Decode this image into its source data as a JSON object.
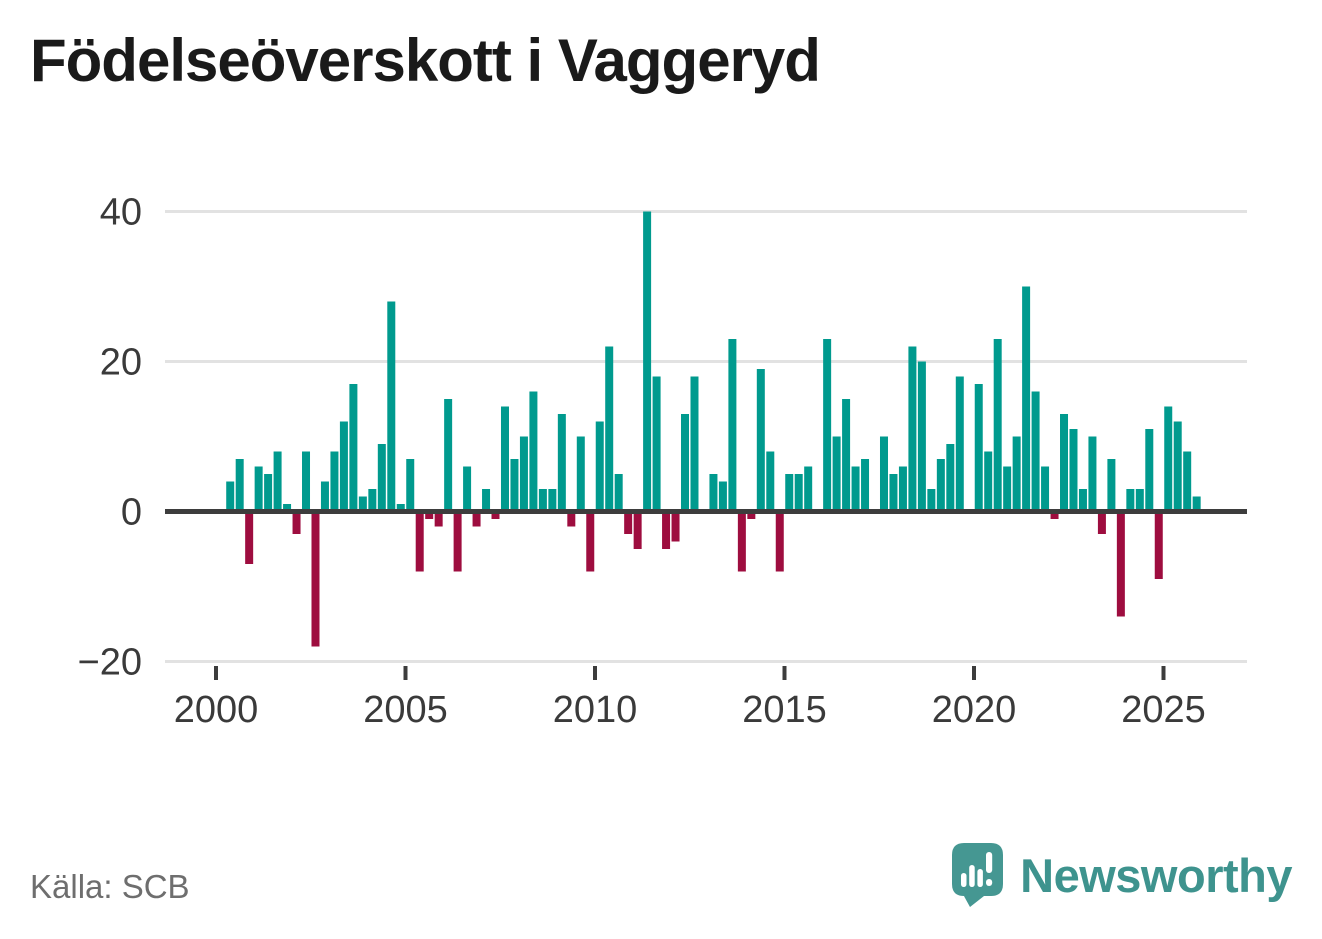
{
  "header": {
    "title": "Födelseöverskott i Vaggeryd"
  },
  "source": {
    "label": "Källa: SCB"
  },
  "logo": {
    "brand": "Newsworthy",
    "color": "#3e938e",
    "icon": "newsworthy-speech-bubble-barchart-icon"
  },
  "chart_data": {
    "type": "bar",
    "title": "Födelseöverskott i Vaggeryd",
    "xlabel": "",
    "ylabel": "",
    "frequency": "quarterly",
    "start": "2000Q2",
    "end": "2025Q4",
    "ylim": [
      -20,
      40
    ],
    "grid": "horizontal",
    "y_ticks": [
      {
        "v": 40,
        "label": "40"
      },
      {
        "v": 20,
        "label": "20"
      },
      {
        "v": 0,
        "label": "0"
      },
      {
        "v": -20,
        "label": "−20"
      }
    ],
    "x_ticks": [
      {
        "year": 2000,
        "label": "2000"
      },
      {
        "year": 2005,
        "label": "2005"
      },
      {
        "year": 2010,
        "label": "2010"
      },
      {
        "year": 2015,
        "label": "2015"
      },
      {
        "year": 2020,
        "label": "2020"
      },
      {
        "year": 2025,
        "label": "2025"
      }
    ],
    "colors": {
      "positive": "#009a8e",
      "negative": "#9e0d3f",
      "grid": "#e2e2e2",
      "axis": "#3d3d3d",
      "text": "#3a3a3a"
    },
    "categories": [
      "2000Q2",
      "2000Q3",
      "2000Q4",
      "2001Q1",
      "2001Q2",
      "2001Q3",
      "2001Q4",
      "2002Q1",
      "2002Q2",
      "2002Q3",
      "2002Q4",
      "2003Q1",
      "2003Q2",
      "2003Q3",
      "2003Q4",
      "2004Q1",
      "2004Q2",
      "2004Q3",
      "2004Q4",
      "2005Q1",
      "2005Q2",
      "2005Q3",
      "2005Q4",
      "2006Q1",
      "2006Q2",
      "2006Q3",
      "2006Q4",
      "2007Q1",
      "2007Q2",
      "2007Q3",
      "2007Q4",
      "2008Q1",
      "2008Q2",
      "2008Q3",
      "2008Q4",
      "2009Q1",
      "2009Q2",
      "2009Q3",
      "2009Q4",
      "2010Q1",
      "2010Q2",
      "2010Q3",
      "2010Q4",
      "2011Q1",
      "2011Q2",
      "2011Q3",
      "2011Q4",
      "2012Q1",
      "2012Q2",
      "2012Q3",
      "2012Q4",
      "2013Q1",
      "2013Q2",
      "2013Q3",
      "2013Q4",
      "2014Q1",
      "2014Q2",
      "2014Q3",
      "2014Q4",
      "2015Q1",
      "2015Q2",
      "2015Q3",
      "2015Q4",
      "2016Q1",
      "2016Q2",
      "2016Q3",
      "2016Q4",
      "2017Q1",
      "2017Q2",
      "2017Q3",
      "2017Q4",
      "2018Q1",
      "2018Q2",
      "2018Q3",
      "2018Q4",
      "2019Q1",
      "2019Q2",
      "2019Q3",
      "2019Q4",
      "2020Q1",
      "2020Q2",
      "2020Q3",
      "2020Q4",
      "2021Q1",
      "2021Q2",
      "2021Q3",
      "2021Q4",
      "2022Q1",
      "2022Q2",
      "2022Q3",
      "2022Q4",
      "2023Q1",
      "2023Q2",
      "2023Q3",
      "2023Q4",
      "2024Q1",
      "2024Q2",
      "2024Q3",
      "2024Q4",
      "2025Q1",
      "2025Q2",
      "2025Q3",
      "2025Q4"
    ],
    "values": [
      4,
      7,
      -7,
      6,
      5,
      8,
      1,
      -3,
      8,
      -18,
      4,
      8,
      12,
      17,
      2,
      3,
      9,
      28,
      1,
      7,
      -8,
      -1,
      -2,
      15,
      -8,
      6,
      -2,
      3,
      -1,
      14,
      7,
      10,
      16,
      3,
      3,
      13,
      -2,
      10,
      -8,
      12,
      22,
      5,
      -3,
      -5,
      40,
      18,
      -5,
      -4,
      13,
      18,
      0,
      5,
      4,
      23,
      -8,
      -1,
      19,
      8,
      -8,
      5,
      5,
      6,
      0,
      23,
      10,
      15,
      6,
      7,
      0,
      10,
      5,
      6,
      22,
      20,
      3,
      7,
      9,
      18,
      0,
      17,
      8,
      23,
      6,
      10,
      30,
      16,
      6,
      -1,
      13,
      11,
      3,
      10,
      -3,
      7,
      -14,
      3,
      3,
      11,
      -9,
      14,
      12,
      8,
      2
    ]
  }
}
